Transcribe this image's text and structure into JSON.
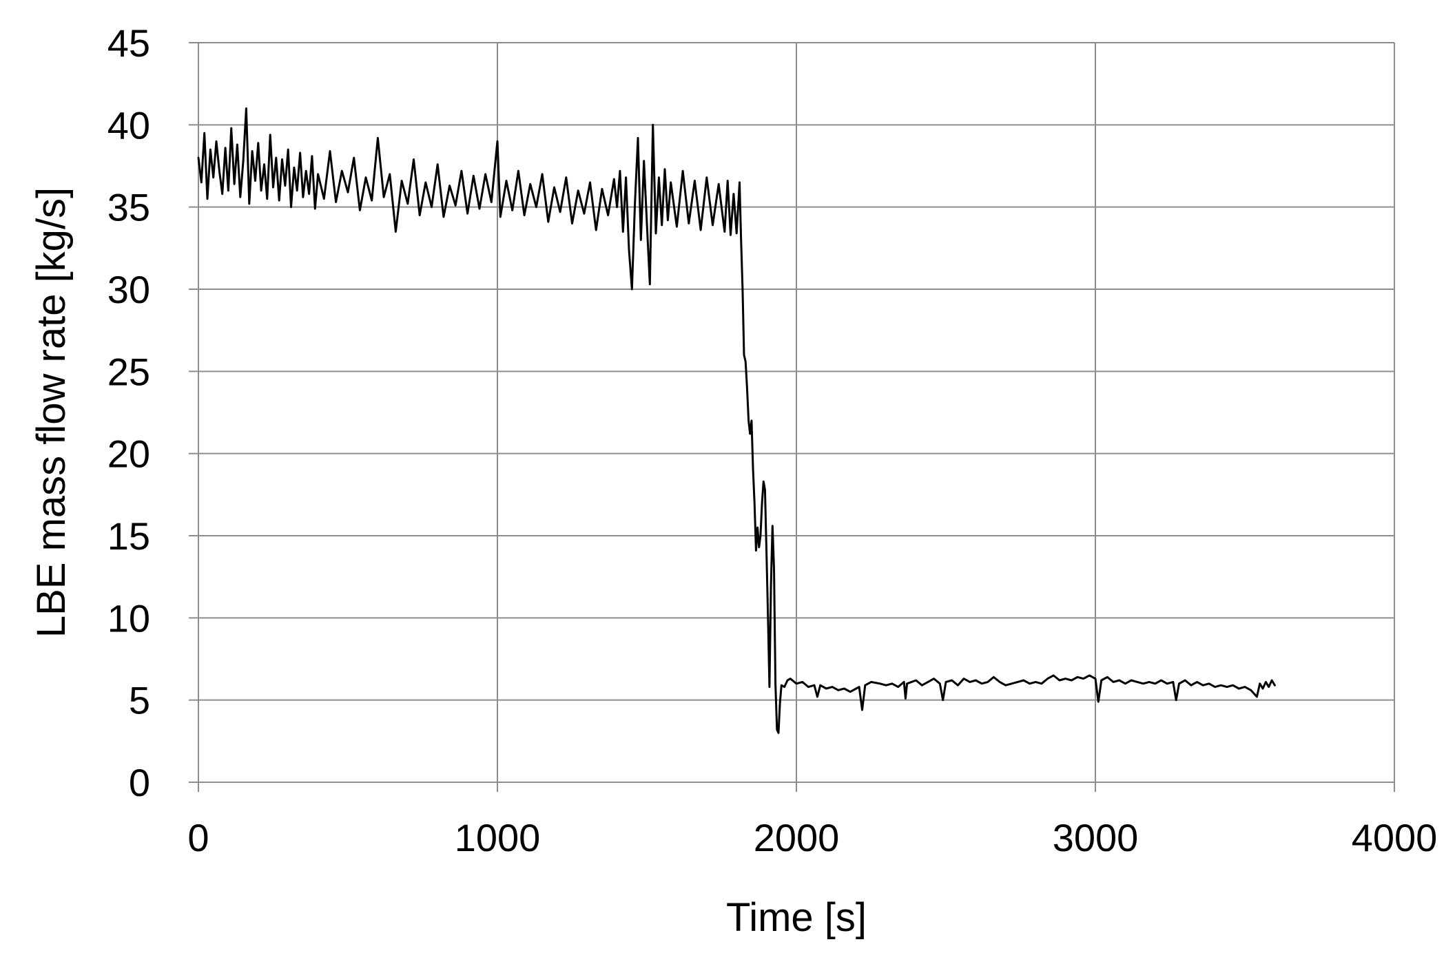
{
  "chart_data": {
    "type": "line",
    "title": "",
    "xlabel": "Time [s]",
    "ylabel": "LBE mass flow rate [kg/s]",
    "xlim": [
      0,
      4000
    ],
    "ylim": [
      0,
      45
    ],
    "x_ticks": [
      0,
      1000,
      2000,
      3000,
      4000
    ],
    "y_ticks": [
      0,
      5,
      10,
      15,
      20,
      25,
      30,
      35,
      40,
      45
    ],
    "x_tick_labels": [
      "0",
      "1000",
      "2000",
      "3000",
      "4000"
    ],
    "y_tick_labels": [
      "0",
      "5",
      "10",
      "15",
      "20",
      "25",
      "30",
      "35",
      "40",
      "45"
    ],
    "grid": true,
    "legend": "none",
    "series": [
      {
        "color": "#000000",
        "points": [
          [
            0,
            38.0
          ],
          [
            10,
            36.5
          ],
          [
            20,
            39.5
          ],
          [
            30,
            35.5
          ],
          [
            40,
            38.5
          ],
          [
            50,
            36.8
          ],
          [
            60,
            39.0
          ],
          [
            70,
            37.2
          ],
          [
            80,
            35.8
          ],
          [
            90,
            38.6
          ],
          [
            100,
            36.0
          ],
          [
            110,
            39.8
          ],
          [
            120,
            36.4
          ],
          [
            130,
            38.8
          ],
          [
            140,
            35.6
          ],
          [
            150,
            37.8
          ],
          [
            160,
            41.0
          ],
          [
            170,
            35.2
          ],
          [
            180,
            38.4
          ],
          [
            190,
            36.6
          ],
          [
            200,
            38.9
          ],
          [
            210,
            36.0
          ],
          [
            220,
            37.6
          ],
          [
            230,
            35.5
          ],
          [
            240,
            39.4
          ],
          [
            250,
            36.2
          ],
          [
            260,
            38.0
          ],
          [
            270,
            35.4
          ],
          [
            280,
            37.9
          ],
          [
            290,
            36.3
          ],
          [
            300,
            38.5
          ],
          [
            310,
            35.0
          ],
          [
            320,
            37.4
          ],
          [
            330,
            36.0
          ],
          [
            340,
            38.3
          ],
          [
            350,
            35.6
          ],
          [
            360,
            37.2
          ],
          [
            370,
            35.8
          ],
          [
            380,
            38.1
          ],
          [
            390,
            34.9
          ],
          [
            400,
            37.0
          ],
          [
            420,
            35.5
          ],
          [
            440,
            38.4
          ],
          [
            460,
            35.3
          ],
          [
            480,
            37.2
          ],
          [
            500,
            35.9
          ],
          [
            520,
            38.0
          ],
          [
            540,
            34.8
          ],
          [
            560,
            36.8
          ],
          [
            580,
            35.4
          ],
          [
            600,
            39.2
          ],
          [
            620,
            35.6
          ],
          [
            640,
            37.0
          ],
          [
            660,
            33.5
          ],
          [
            680,
            36.6
          ],
          [
            700,
            35.2
          ],
          [
            720,
            37.9
          ],
          [
            740,
            34.5
          ],
          [
            760,
            36.5
          ],
          [
            780,
            35.0
          ],
          [
            800,
            37.6
          ],
          [
            820,
            34.4
          ],
          [
            840,
            36.3
          ],
          [
            860,
            35.1
          ],
          [
            880,
            37.2
          ],
          [
            900,
            34.6
          ],
          [
            920,
            36.9
          ],
          [
            940,
            34.9
          ],
          [
            960,
            37.0
          ],
          [
            980,
            35.3
          ],
          [
            1000,
            39.0
          ],
          [
            1010,
            34.4
          ],
          [
            1030,
            36.6
          ],
          [
            1050,
            34.8
          ],
          [
            1070,
            37.2
          ],
          [
            1090,
            34.5
          ],
          [
            1110,
            36.4
          ],
          [
            1130,
            35.0
          ],
          [
            1150,
            37.0
          ],
          [
            1170,
            34.1
          ],
          [
            1190,
            36.2
          ],
          [
            1210,
            34.7
          ],
          [
            1230,
            36.8
          ],
          [
            1250,
            34.0
          ],
          [
            1270,
            36.0
          ],
          [
            1290,
            34.6
          ],
          [
            1310,
            36.5
          ],
          [
            1330,
            33.6
          ],
          [
            1350,
            36.1
          ],
          [
            1370,
            34.5
          ],
          [
            1390,
            36.7
          ],
          [
            1400,
            35.0
          ],
          [
            1410,
            37.2
          ],
          [
            1420,
            33.5
          ],
          [
            1430,
            36.8
          ],
          [
            1440,
            32.4
          ],
          [
            1450,
            30.0
          ],
          [
            1460,
            35.2
          ],
          [
            1470,
            39.2
          ],
          [
            1480,
            33.0
          ],
          [
            1490,
            37.8
          ],
          [
            1500,
            34.0
          ],
          [
            1510,
            30.3
          ],
          [
            1520,
            40.0
          ],
          [
            1530,
            33.4
          ],
          [
            1540,
            36.8
          ],
          [
            1550,
            33.9
          ],
          [
            1560,
            37.3
          ],
          [
            1570,
            34.2
          ],
          [
            1580,
            36.5
          ],
          [
            1600,
            33.8
          ],
          [
            1620,
            37.2
          ],
          [
            1640,
            34.0
          ],
          [
            1660,
            36.6
          ],
          [
            1680,
            33.6
          ],
          [
            1700,
            36.8
          ],
          [
            1720,
            33.9
          ],
          [
            1740,
            36.4
          ],
          [
            1760,
            33.5
          ],
          [
            1770,
            36.6
          ],
          [
            1780,
            33.3
          ],
          [
            1790,
            35.8
          ],
          [
            1800,
            33.4
          ],
          [
            1810,
            36.5
          ],
          [
            1815,
            33.0
          ],
          [
            1820,
            30.0
          ],
          [
            1825,
            26.0
          ],
          [
            1830,
            25.6
          ],
          [
            1835,
            24.0
          ],
          [
            1840,
            22.0
          ],
          [
            1845,
            21.2
          ],
          [
            1850,
            22.0
          ],
          [
            1855,
            19.0
          ],
          [
            1860,
            17.0
          ],
          [
            1865,
            14.1
          ],
          [
            1870,
            15.5
          ],
          [
            1875,
            14.3
          ],
          [
            1880,
            15.0
          ],
          [
            1885,
            17.0
          ],
          [
            1890,
            18.3
          ],
          [
            1895,
            17.8
          ],
          [
            1900,
            14.0
          ],
          [
            1905,
            10.0
          ],
          [
            1910,
            5.8
          ],
          [
            1915,
            12.0
          ],
          [
            1920,
            15.6
          ],
          [
            1925,
            13.0
          ],
          [
            1930,
            6.0
          ],
          [
            1935,
            3.2
          ],
          [
            1940,
            3.0
          ],
          [
            1945,
            4.8
          ],
          [
            1950,
            5.9
          ],
          [
            1960,
            5.8
          ],
          [
            1970,
            6.2
          ],
          [
            1980,
            6.3
          ],
          [
            2000,
            6.0
          ],
          [
            2020,
            6.1
          ],
          [
            2040,
            5.8
          ],
          [
            2060,
            5.9
          ],
          [
            2070,
            5.2
          ],
          [
            2080,
            5.9
          ],
          [
            2100,
            5.7
          ],
          [
            2120,
            5.8
          ],
          [
            2140,
            5.6
          ],
          [
            2160,
            5.7
          ],
          [
            2180,
            5.5
          ],
          [
            2200,
            5.7
          ],
          [
            2210,
            5.8
          ],
          [
            2220,
            4.4
          ],
          [
            2230,
            5.9
          ],
          [
            2250,
            6.1
          ],
          [
            2280,
            6.0
          ],
          [
            2300,
            5.9
          ],
          [
            2320,
            6.0
          ],
          [
            2340,
            5.8
          ],
          [
            2360,
            6.1
          ],
          [
            2365,
            5.1
          ],
          [
            2370,
            6.0
          ],
          [
            2400,
            6.2
          ],
          [
            2420,
            5.9
          ],
          [
            2440,
            6.1
          ],
          [
            2460,
            6.3
          ],
          [
            2480,
            6.0
          ],
          [
            2490,
            5.0
          ],
          [
            2500,
            6.1
          ],
          [
            2520,
            6.2
          ],
          [
            2540,
            5.9
          ],
          [
            2560,
            6.3
          ],
          [
            2580,
            6.1
          ],
          [
            2600,
            6.2
          ],
          [
            2620,
            6.0
          ],
          [
            2640,
            6.1
          ],
          [
            2660,
            6.4
          ],
          [
            2680,
            6.1
          ],
          [
            2700,
            5.9
          ],
          [
            2720,
            6.0
          ],
          [
            2740,
            6.1
          ],
          [
            2760,
            6.2
          ],
          [
            2780,
            6.0
          ],
          [
            2800,
            6.1
          ],
          [
            2820,
            6.0
          ],
          [
            2840,
            6.3
          ],
          [
            2860,
            6.5
          ],
          [
            2880,
            6.2
          ],
          [
            2900,
            6.3
          ],
          [
            2920,
            6.2
          ],
          [
            2940,
            6.4
          ],
          [
            2960,
            6.3
          ],
          [
            2980,
            6.5
          ],
          [
            3000,
            6.3
          ],
          [
            3010,
            4.9
          ],
          [
            3020,
            6.2
          ],
          [
            3040,
            6.4
          ],
          [
            3060,
            6.1
          ],
          [
            3080,
            6.2
          ],
          [
            3100,
            6.0
          ],
          [
            3120,
            6.2
          ],
          [
            3140,
            6.1
          ],
          [
            3160,
            6.0
          ],
          [
            3180,
            6.1
          ],
          [
            3200,
            6.0
          ],
          [
            3220,
            6.2
          ],
          [
            3240,
            6.0
          ],
          [
            3260,
            6.1
          ],
          [
            3270,
            5.0
          ],
          [
            3280,
            6.0
          ],
          [
            3300,
            6.2
          ],
          [
            3320,
            5.9
          ],
          [
            3340,
            6.1
          ],
          [
            3360,
            5.9
          ],
          [
            3380,
            6.0
          ],
          [
            3400,
            5.8
          ],
          [
            3420,
            5.9
          ],
          [
            3440,
            5.8
          ],
          [
            3460,
            5.9
          ],
          [
            3480,
            5.7
          ],
          [
            3500,
            5.8
          ],
          [
            3520,
            5.6
          ],
          [
            3540,
            5.2
          ],
          [
            3550,
            6.0
          ],
          [
            3560,
            5.7
          ],
          [
            3570,
            6.1
          ],
          [
            3580,
            5.8
          ],
          [
            3590,
            6.2
          ],
          [
            3600,
            5.9
          ]
        ]
      }
    ]
  }
}
